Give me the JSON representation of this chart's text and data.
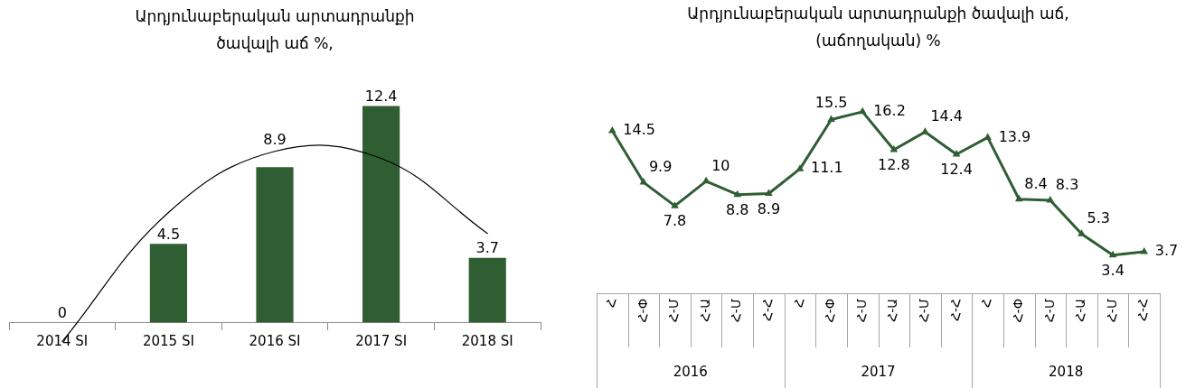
{
  "chart_data": [
    {
      "type": "bar",
      "title": "Արդյունաբերական արտադրանքի\nծավալի աճ %,",
      "categories": [
        "2014 SI",
        "2015 SI",
        "2016 SI",
        "2017 SI",
        "2018 SI"
      ],
      "series": [
        {
          "color": "#2f5e33",
          "values": [
            0,
            4.5,
            8.9,
            12.4,
            3.7
          ],
          "value_labels": [
            "0",
            "4.5",
            "8.9",
            "12.4",
            "3.7"
          ]
        },
        {
          "type": "line",
          "color": "#000000",
          "values": [
            -1.1,
            6.3,
            9.8,
            9.4,
            5.1
          ]
        }
      ]
    },
    {
      "type": "line",
      "title": "Արդյունաբերական արտադրանքի ծավալի աճ,\n(աճողական) %",
      "categories": [
        "Հ",
        "Հ-Փ",
        "Հ-Մ",
        "Հ-Ա",
        "Հ-Մ",
        "Հ-Հ",
        "Հ",
        "Հ-Փ",
        "Հ-Մ",
        "Հ-Ա",
        "Հ-Մ",
        "Հ-Հ",
        "Հ",
        "Հ-Փ",
        "Հ-Մ",
        "Հ-Ա",
        "Հ-Մ",
        "Հ-Հ"
      ],
      "values": [
        14.5,
        9.9,
        7.8,
        10,
        8.8,
        8.9,
        11.1,
        15.5,
        16.2,
        12.8,
        14.4,
        12.4,
        13.9,
        8.4,
        8.3,
        5.3,
        3.4,
        3.7
      ],
      "color": "#2f5e33",
      "marker": "triangle",
      "data_labels": true,
      "annotations": [
        "2016",
        "2017",
        "2018"
      ]
    }
  ]
}
